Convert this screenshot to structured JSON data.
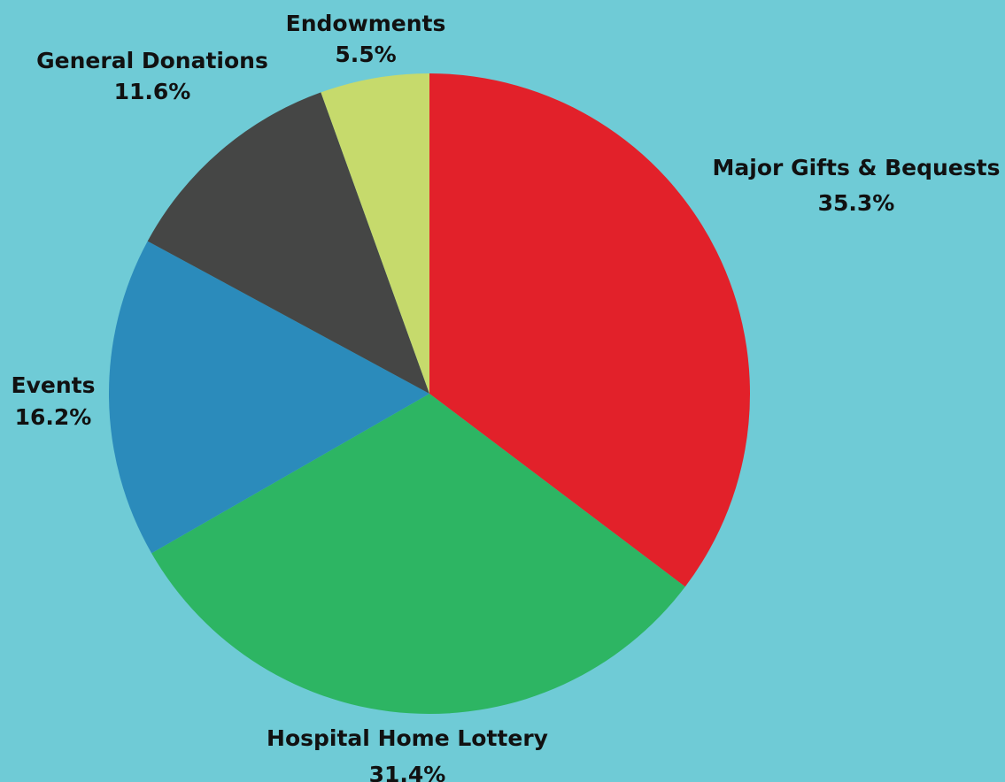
{
  "background_color": "#6fcbd6",
  "chart_data": {
    "type": "pie",
    "title": "",
    "start_angle_deg": 0,
    "direction": "clockwise",
    "slices": [
      {
        "label": "Major Gifts & Bequests",
        "value": 35.3,
        "value_label": "35.3%",
        "color": "#e2212a"
      },
      {
        "label": "Hospital Home Lottery",
        "value": 31.4,
        "value_label": "31.4%",
        "color": "#2db563"
      },
      {
        "label": "Events",
        "value": 16.2,
        "value_label": "16.2%",
        "color": "#2b8bbb"
      },
      {
        "label": "General Donations",
        "value": 11.6,
        "value_label": "11.6%",
        "color": "#454645"
      },
      {
        "label": "Endowments",
        "value": 5.5,
        "value_label": "5.5%",
        "color": "#c6da6c"
      }
    ]
  }
}
